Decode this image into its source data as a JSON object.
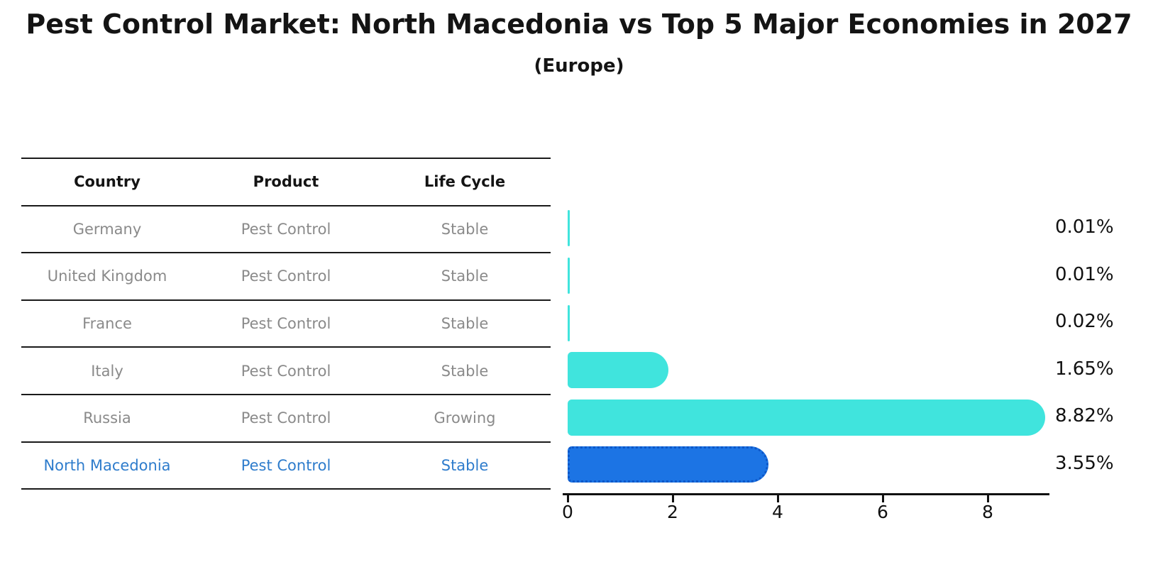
{
  "title": "Pest Control Market: North Macedonia vs Top 5 Major Economies in 2027",
  "subtitle": "(Europe)",
  "table": {
    "headers": [
      "Country",
      "Product",
      "Life Cycle"
    ],
    "rows": [
      {
        "country": "Germany",
        "product": "Pest Control",
        "life_cycle": "Stable",
        "highlight": false
      },
      {
        "country": "United Kingdom",
        "product": "Pest Control",
        "life_cycle": "Stable",
        "highlight": false
      },
      {
        "country": "France",
        "product": "Pest Control",
        "life_cycle": "Stable",
        "highlight": false
      },
      {
        "country": "Italy",
        "product": "Pest Control",
        "life_cycle": "Stable",
        "highlight": false
      },
      {
        "country": "Russia",
        "product": "Pest Control",
        "life_cycle": "Growing",
        "highlight": false
      },
      {
        "country": "North Macedonia",
        "product": "Pest Control",
        "life_cycle": "Stable",
        "highlight": true
      }
    ]
  },
  "chart_data": {
    "type": "bar",
    "orientation": "horizontal",
    "title": "Pest Control Market: North Macedonia vs Top 5 Major Economies in 2027 (Europe)",
    "categories": [
      "Germany",
      "United Kingdom",
      "France",
      "Italy",
      "Russia",
      "North Macedonia"
    ],
    "values": [
      0.01,
      0.01,
      0.02,
      1.65,
      8.82,
      3.55
    ],
    "value_labels": [
      "0.01%",
      "0.01%",
      "0.02%",
      "1.65%",
      "8.82%",
      "3.55%"
    ],
    "x_ticks": [
      0,
      2,
      4,
      6,
      8
    ],
    "xlim": [
      0,
      9.2
    ],
    "grid": false,
    "legend": false,
    "highlight_index": 5,
    "bar_color": "#40e4dd",
    "highlight_bar_color": "#1c74e4",
    "highlight_text_color": "#2e7ccc",
    "row_text_color": "#8a8a8a"
  }
}
